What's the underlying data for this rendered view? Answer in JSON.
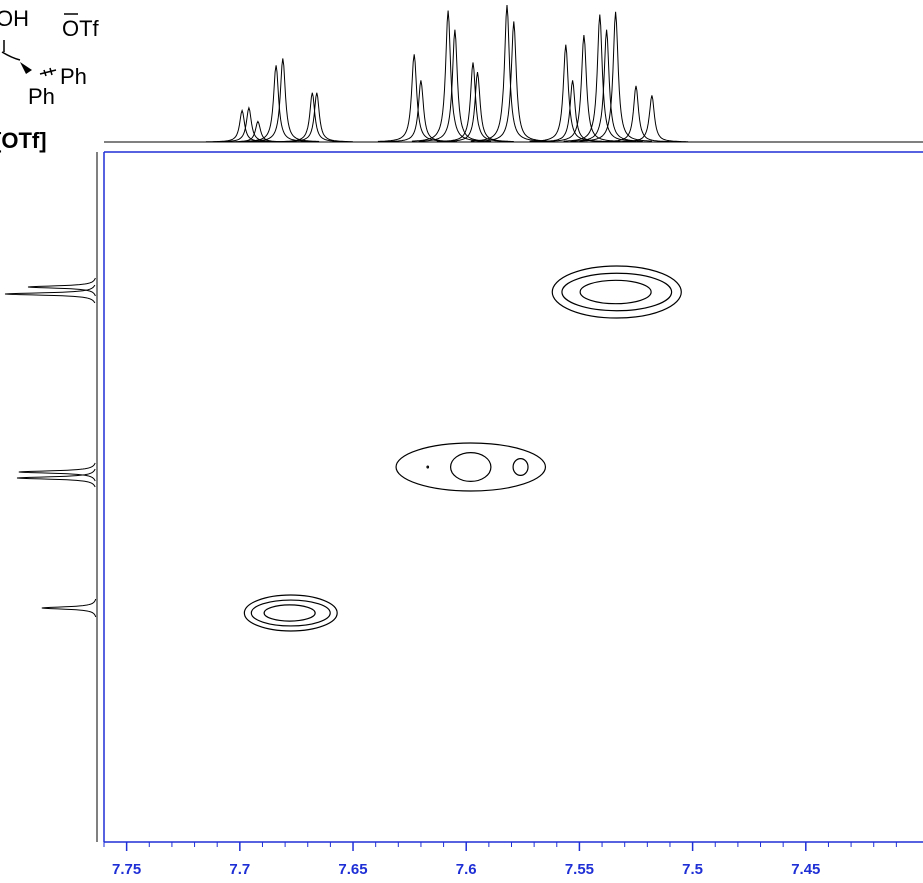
{
  "structure": {
    "labels": [
      "OH",
      "OTf",
      "Ph",
      "Ph"
    ],
    "compound_label": "[OTf]"
  },
  "chart_data": {
    "type": "nmr2d",
    "xlim": [
      7.76,
      7.4
    ],
    "xticks": [
      7.75,
      7.7,
      7.65,
      7.6,
      7.55,
      7.5,
      7.45
    ],
    "x_minor_ticks": [
      7.76,
      7.74,
      7.73,
      7.72,
      7.71,
      7.69,
      7.68,
      7.67,
      7.66,
      7.64,
      7.63,
      7.62,
      7.61,
      7.59,
      7.58,
      7.57,
      7.56,
      7.54,
      7.53,
      7.52,
      7.51,
      7.49,
      7.48,
      7.47,
      7.46,
      7.44,
      7.43,
      7.42,
      7.41
    ],
    "axis_color": "#1f2fd6",
    "top_spectrum": {
      "x": [
        7.699,
        7.696,
        7.692,
        7.684,
        7.681,
        7.668,
        7.666,
        7.623,
        7.62,
        7.608,
        7.605,
        7.597,
        7.595,
        7.582,
        7.579,
        7.556,
        7.553,
        7.548,
        7.541,
        7.538,
        7.534,
        7.525,
        7.518
      ],
      "values": [
        23,
        25,
        15,
        56,
        61,
        36,
        36,
        64,
        45,
        96,
        82,
        58,
        51,
        100,
        88,
        71,
        45,
        78,
        93,
        82,
        95,
        41,
        34
      ]
    },
    "left_spectrum": {
      "values": [
        75,
        100,
        85,
        87,
        60
      ]
    },
    "cross_peaks": [
      {
        "x_range": [
          7.562,
          7.505
        ],
        "maxima": [
          7.534
        ]
      },
      {
        "x_range": [
          7.631,
          7.565
        ],
        "maxima": [
          7.598,
          7.576,
          7.617
        ]
      },
      {
        "x_range": [
          7.698,
          7.657
        ],
        "maxima": [
          7.678
        ]
      }
    ]
  }
}
